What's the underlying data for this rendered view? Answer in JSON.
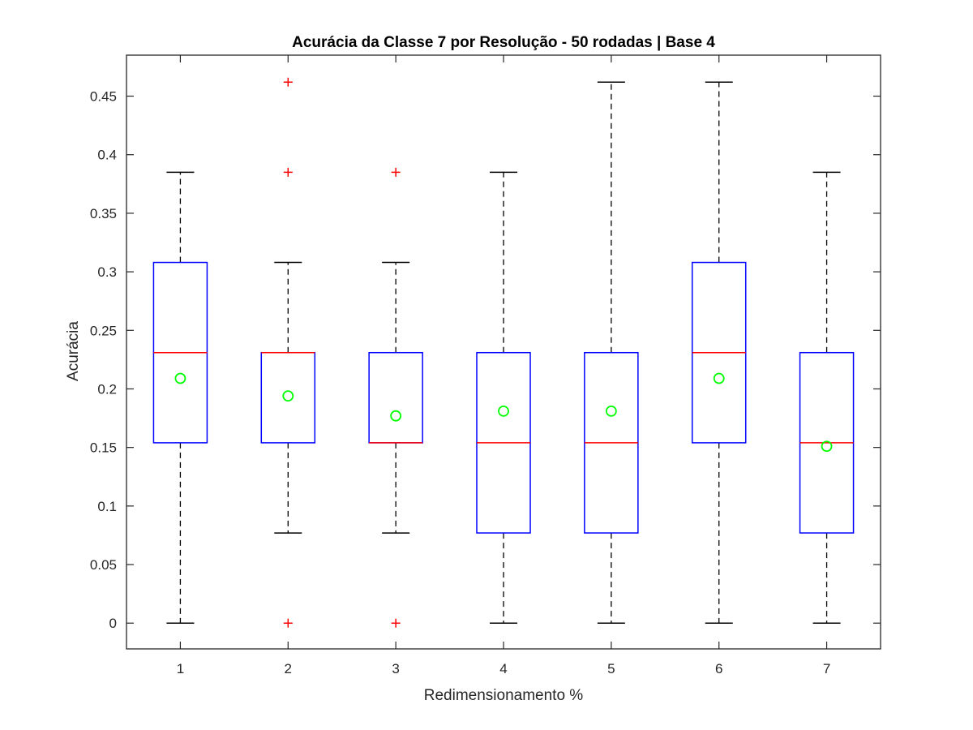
{
  "chart_data": {
    "type": "boxplot",
    "title": "Acurácia da Classe 7 por Resolução - 50 rodadas | Base 4",
    "xlabel": "Redimensionamento %",
    "ylabel": "Acurácia",
    "xlim": [
      0.5,
      7.5
    ],
    "ylim": [
      -0.022,
      0.485
    ],
    "yticks": [
      0,
      0.05,
      0.1,
      0.15,
      0.2,
      0.25,
      0.3,
      0.35,
      0.4,
      0.45
    ],
    "ytick_labels": [
      "0",
      "0.05",
      "0.1",
      "0.15",
      "0.2",
      "0.25",
      "0.3",
      "0.35",
      "0.4",
      "0.45"
    ],
    "categories": [
      "1",
      "2",
      "3",
      "4",
      "5",
      "6",
      "7"
    ],
    "boxes": [
      {
        "x": 1,
        "whisker_low": 0.0,
        "q1": 0.154,
        "median": 0.231,
        "q3": 0.308,
        "whisker_high": 0.385,
        "mean": 0.209,
        "outliers": []
      },
      {
        "x": 2,
        "whisker_low": 0.077,
        "q1": 0.154,
        "median": 0.231,
        "q3": 0.231,
        "whisker_high": 0.308,
        "mean": 0.194,
        "outliers": [
          0.0,
          0.385,
          0.462
        ]
      },
      {
        "x": 3,
        "whisker_low": 0.077,
        "q1": 0.154,
        "median": 0.154,
        "q3": 0.231,
        "whisker_high": 0.308,
        "mean": 0.177,
        "outliers": [
          0.0,
          0.385
        ]
      },
      {
        "x": 4,
        "whisker_low": 0.0,
        "q1": 0.077,
        "median": 0.154,
        "q3": 0.231,
        "whisker_high": 0.385,
        "mean": 0.181,
        "outliers": []
      },
      {
        "x": 5,
        "whisker_low": 0.0,
        "q1": 0.077,
        "median": 0.154,
        "q3": 0.231,
        "whisker_high": 0.462,
        "mean": 0.181,
        "outliers": []
      },
      {
        "x": 6,
        "whisker_low": 0.0,
        "q1": 0.154,
        "median": 0.231,
        "q3": 0.308,
        "whisker_high": 0.462,
        "mean": 0.209,
        "outliers": []
      },
      {
        "x": 7,
        "whisker_low": 0.0,
        "q1": 0.077,
        "median": 0.154,
        "q3": 0.231,
        "whisker_high": 0.385,
        "mean": 0.151,
        "outliers": []
      }
    ],
    "colors": {
      "box": "#0000ff",
      "median": "#ff0000",
      "whisker": "#000000",
      "outlier": "#ff0000",
      "mean_marker": "#00ff00",
      "axes": "#262626"
    },
    "grid": false,
    "legend": "none"
  }
}
